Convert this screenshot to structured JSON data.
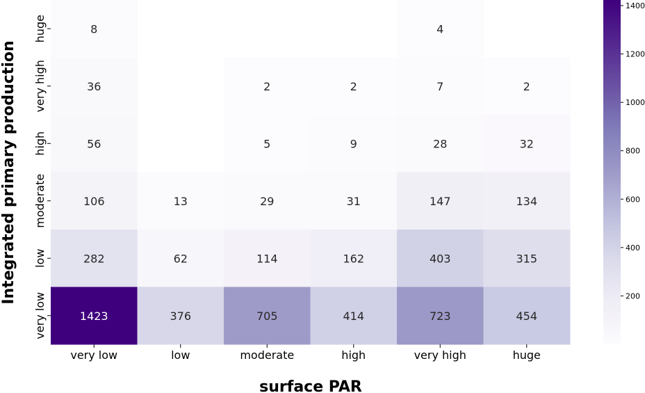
{
  "chart_data": {
    "type": "heatmap",
    "xlabel": "surface PAR",
    "ylabel": "Integrated primary production",
    "x_categories": [
      "very low",
      "low",
      "moderate",
      "high",
      "very high",
      "huge"
    ],
    "y_categories": [
      "huge",
      "very high",
      "high",
      "moderate",
      "low",
      "very low"
    ],
    "values": [
      [
        8,
        null,
        null,
        null,
        4,
        null
      ],
      [
        36,
        null,
        2,
        2,
        7,
        2
      ],
      [
        56,
        null,
        5,
        9,
        28,
        32
      ],
      [
        106,
        13,
        29,
        31,
        147,
        134
      ],
      [
        282,
        62,
        114,
        162,
        403,
        315
      ],
      [
        1423,
        376,
        705,
        414,
        723,
        454
      ]
    ],
    "colorbar": {
      "min": 0,
      "max": 1423,
      "ticks": [
        200,
        400,
        600,
        800,
        1000,
        1200,
        1400
      ],
      "colormap": "Purples",
      "colors": [
        "#fcfbfd",
        "#efedf5",
        "#dadaeb",
        "#bcbddc",
        "#9e9ac8",
        "#807dba",
        "#6a51a3",
        "#54278f",
        "#3f007d"
      ]
    }
  }
}
